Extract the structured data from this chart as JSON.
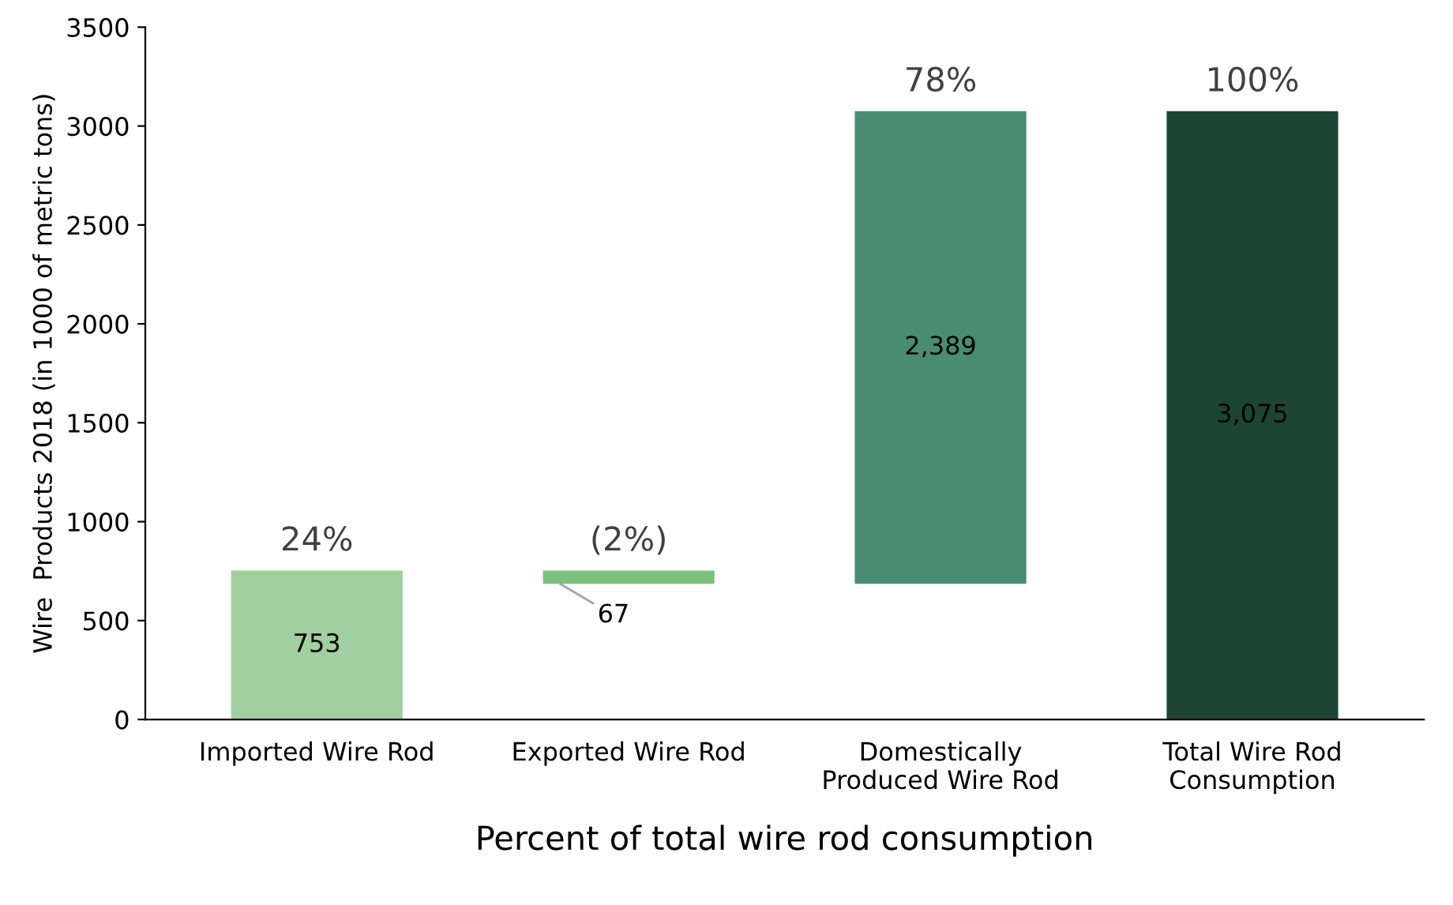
{
  "chart_data": {
    "type": "bar",
    "xlabel": "Percent of total wire rod consumption",
    "ylabel": "Wire  Products 2018 (in 1000 of metric tons)",
    "categories": [
      "Imported Wire Rod",
      "Exported Wire Rod",
      "Domestically\nProduced Wire Rod",
      "Total Wire Rod\nConsumption"
    ],
    "values": [
      753,
      67,
      2389,
      3075
    ],
    "base": [
      0,
      686,
      686,
      0
    ],
    "colors": [
      "#a1cf9f",
      "#7cc17b",
      "#4a8c73",
      "#1d4535"
    ],
    "value_labels": [
      "753",
      "67",
      "2,389",
      "3,075"
    ],
    "annotations": [
      {
        "text": "24%",
        "x": "Imported Wire Rod",
        "y": 753
      },
      {
        "text": "(2%)",
        "x": "Exported Wire Rod",
        "y": 753
      },
      {
        "text": "78%",
        "x": "Domestically\nProduced Wire Rod",
        "y": 3075
      },
      {
        "text": "100%",
        "x": "Total Wire Rod\nConsumption",
        "y": 3075
      }
    ],
    "ylim": [
      0,
      3500
    ],
    "yticks": [
      0,
      500,
      1000,
      1500,
      2000,
      2500,
      3000,
      3500
    ],
    "grid": false,
    "legend": false
  }
}
